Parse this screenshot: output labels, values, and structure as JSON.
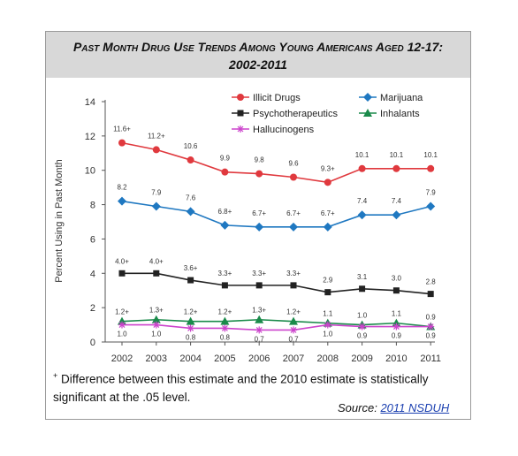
{
  "title": {
    "line1": "Past Month Drug Use Trends Among Young Americans Aged 12-17:",
    "line2": "2002-2011"
  },
  "note": {
    "mark": "+",
    "text": " Difference between this estimate and the 2010 estimate is statistically significant at the .05 level."
  },
  "source": {
    "label": "Source:",
    "link_text": "2011 NSDUH"
  },
  "colors": {
    "illicit": "#e0393e",
    "psycho": "#222222",
    "halluc": "#cc44cc",
    "marijuana": "#1f78c1",
    "inhalants": "#1a8a4a"
  },
  "chart_data": {
    "type": "line",
    "ylabel": "Percent Using in Past Month",
    "ylim": [
      0,
      14
    ],
    "yticks": [
      "0",
      "2",
      "4",
      "6",
      "8",
      "10",
      "12",
      "14"
    ],
    "categories": [
      "2002",
      "2003",
      "2004",
      "2005",
      "2006",
      "2007",
      "2008",
      "2009",
      "2010",
      "2011"
    ],
    "grid": false,
    "legend_position": "top",
    "series": [
      {
        "name": "Illicit Drugs",
        "key": "illicit",
        "marker": "circle",
        "values": [
          11.6,
          11.2,
          10.6,
          9.9,
          9.8,
          9.6,
          9.3,
          10.1,
          10.1,
          10.1
        ],
        "labels": [
          "11.6+",
          "11.2+",
          "10.6",
          "9.9",
          "9.8",
          "9.6",
          "9.3+",
          "10.1",
          "10.1",
          "10.1"
        ]
      },
      {
        "name": "Marijuana",
        "key": "marijuana",
        "marker": "diamond",
        "values": [
          8.2,
          7.9,
          7.6,
          6.8,
          6.7,
          6.7,
          6.7,
          7.4,
          7.4,
          7.9
        ],
        "labels": [
          "8.2",
          "7.9",
          "7.6",
          "6.8+",
          "6.7+",
          "6.7+",
          "6.7+",
          "7.4",
          "7.4",
          "7.9"
        ]
      },
      {
        "name": "Psychotherapeutics",
        "key": "psycho",
        "marker": "square",
        "values": [
          4.0,
          4.0,
          3.6,
          3.3,
          3.3,
          3.3,
          2.9,
          3.1,
          3.0,
          2.8
        ],
        "labels": [
          "4.0+",
          "4.0+",
          "3.6+",
          "3.3+",
          "3.3+",
          "3.3+",
          "2.9",
          "3.1",
          "3.0",
          "2.8"
        ]
      },
      {
        "name": "Inhalants",
        "key": "inhalants",
        "marker": "triangle",
        "values": [
          1.2,
          1.3,
          1.2,
          1.2,
          1.3,
          1.2,
          1.1,
          1.0,
          1.1,
          0.9
        ],
        "labels": [
          "1.2+",
          "1.3+",
          "1.2+",
          "1.2+",
          "1.3+",
          "1.2+",
          "1.1",
          "1.0",
          "1.1",
          "0.9"
        ]
      },
      {
        "name": "Hallucinogens",
        "key": "halluc",
        "marker": "star",
        "values": [
          1.0,
          1.0,
          0.8,
          0.8,
          0.7,
          0.7,
          1.0,
          0.9,
          0.9,
          0.9
        ],
        "labels": [
          "1.0",
          "1.0",
          "0.8",
          "0.8",
          "0.7",
          "0.7",
          "1.0",
          "0.9",
          "0.9",
          "0.9"
        ]
      }
    ]
  }
}
